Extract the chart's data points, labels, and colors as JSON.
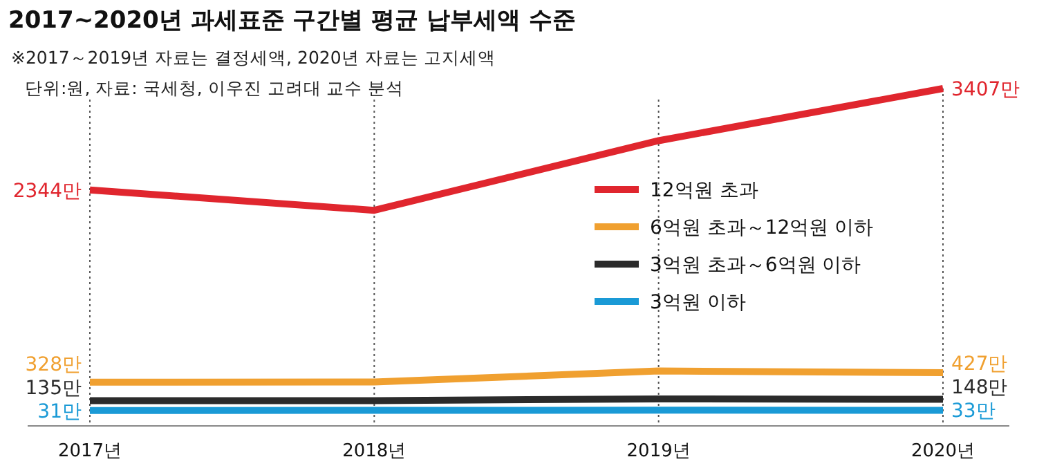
{
  "chart_data": {
    "type": "line",
    "title": "2017~2020년 과세표준 구간별 평균 납부세액 수준",
    "annotations": [
      "※2017～2019년 자료는 결정세액, 2020년 자료는 고지세액",
      "단위:원, 자료: 국세청, 이우진 고려대 교수 분석"
    ],
    "categories": [
      "2017년",
      "2018년",
      "2019년",
      "2020년"
    ],
    "series": [
      {
        "name": "12억원 초과",
        "color": "#e0262e",
        "values": [
          2344,
          2130,
          2860,
          3407
        ],
        "value_labels": [
          "2344만",
          null,
          null,
          "3407만"
        ]
      },
      {
        "name": "6억원 초과～12억원 이하",
        "color": "#f0a030",
        "values": [
          328,
          330,
          445,
          427
        ],
        "value_labels": [
          "328만",
          null,
          null,
          "427만"
        ]
      },
      {
        "name": "3억원 초과～6억원 이하",
        "color": "#2b2b2b",
        "values": [
          135,
          135,
          152,
          148
        ],
        "value_labels": [
          "135만",
          null,
          null,
          "148만"
        ]
      },
      {
        "name": "3억원 이하",
        "color": "#1a9ad6",
        "values": [
          31,
          32,
          34,
          33
        ],
        "value_labels": [
          "31만",
          null,
          null,
          "33만"
        ]
      }
    ],
    "grid": "x",
    "legend": "right",
    "marker": "none",
    "line_style": "solid"
  }
}
